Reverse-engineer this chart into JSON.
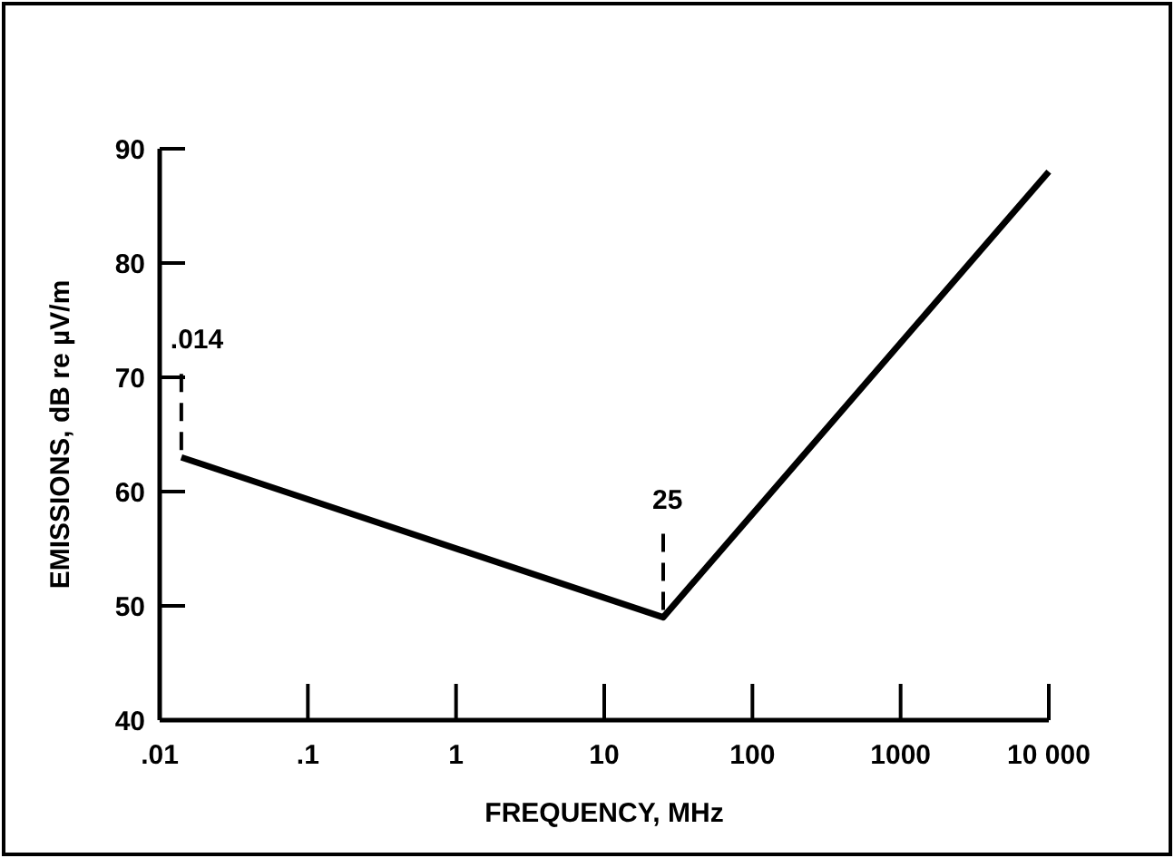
{
  "chart_data": {
    "type": "line",
    "xlabel": "FREQUENCY, MHz",
    "ylabel": "EMISSIONS, dB re µV/m",
    "log": "x",
    "x": [
      0.014,
      25,
      10000
    ],
    "series": [
      {
        "color": "#000000",
        "values": [
          63,
          49,
          88
        ]
      }
    ],
    "xlim": [
      0.01,
      10000
    ],
    "xticks": [
      {
        "value": 0.01,
        "label": ".01"
      },
      {
        "value": 0.1,
        "label": ".1"
      },
      1,
      10,
      100,
      1000,
      {
        "value": 10000,
        "label": "10 000"
      }
    ],
    "ylim": [
      40,
      90
    ],
    "yticks": [
      40,
      50,
      60,
      70,
      80,
      90
    ],
    "annotations": [
      {
        "text": ".014",
        "x": 0.014,
        "y": 63
      },
      {
        "text": "25",
        "x": 25,
        "y": 49
      }
    ],
    "grid": false,
    "marker": "none",
    "line_style": "solid"
  }
}
